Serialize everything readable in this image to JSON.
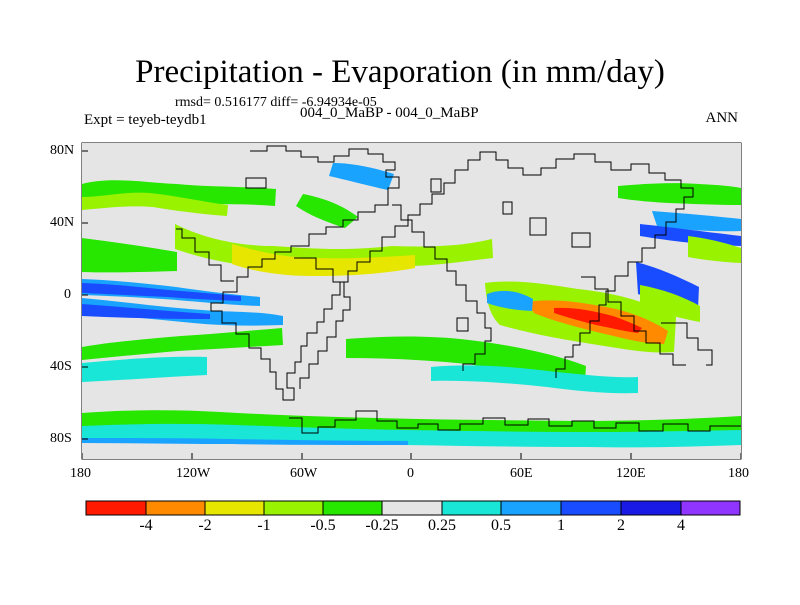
{
  "title": "Precipitation - Evaporation (in mm/day)",
  "stats": "rmsd= 0.516177 diff= -6.94934e-05",
  "experiment": "Expt = teyeb-teydb1",
  "case": "004_0_MaBP - 004_0_MaBP",
  "season": "ANN",
  "latitude_labels": [
    "80N",
    "40N",
    "0",
    "40S",
    "80S"
  ],
  "longitude_labels": [
    "180",
    "120W",
    "60W",
    "0",
    "60E",
    "120E",
    "180"
  ],
  "colorbar": {
    "labels": [
      "-4",
      "-2",
      "-1",
      "-0.5",
      "-0.25",
      "0.25",
      "0.5",
      "1",
      "2",
      "4"
    ],
    "colors": [
      "#ff1a00",
      "#ff8a00",
      "#e6e600",
      "#99f200",
      "#27e600",
      "#e5e5e5",
      "#19e6d6",
      "#19a3ff",
      "#1a4cff",
      "#1a1ae6",
      "#8f35ff"
    ]
  },
  "map_palette": {
    "land": "#e5e5e5",
    "ocean_neutral": "#e5e5e5",
    "coast": "#000000"
  }
}
